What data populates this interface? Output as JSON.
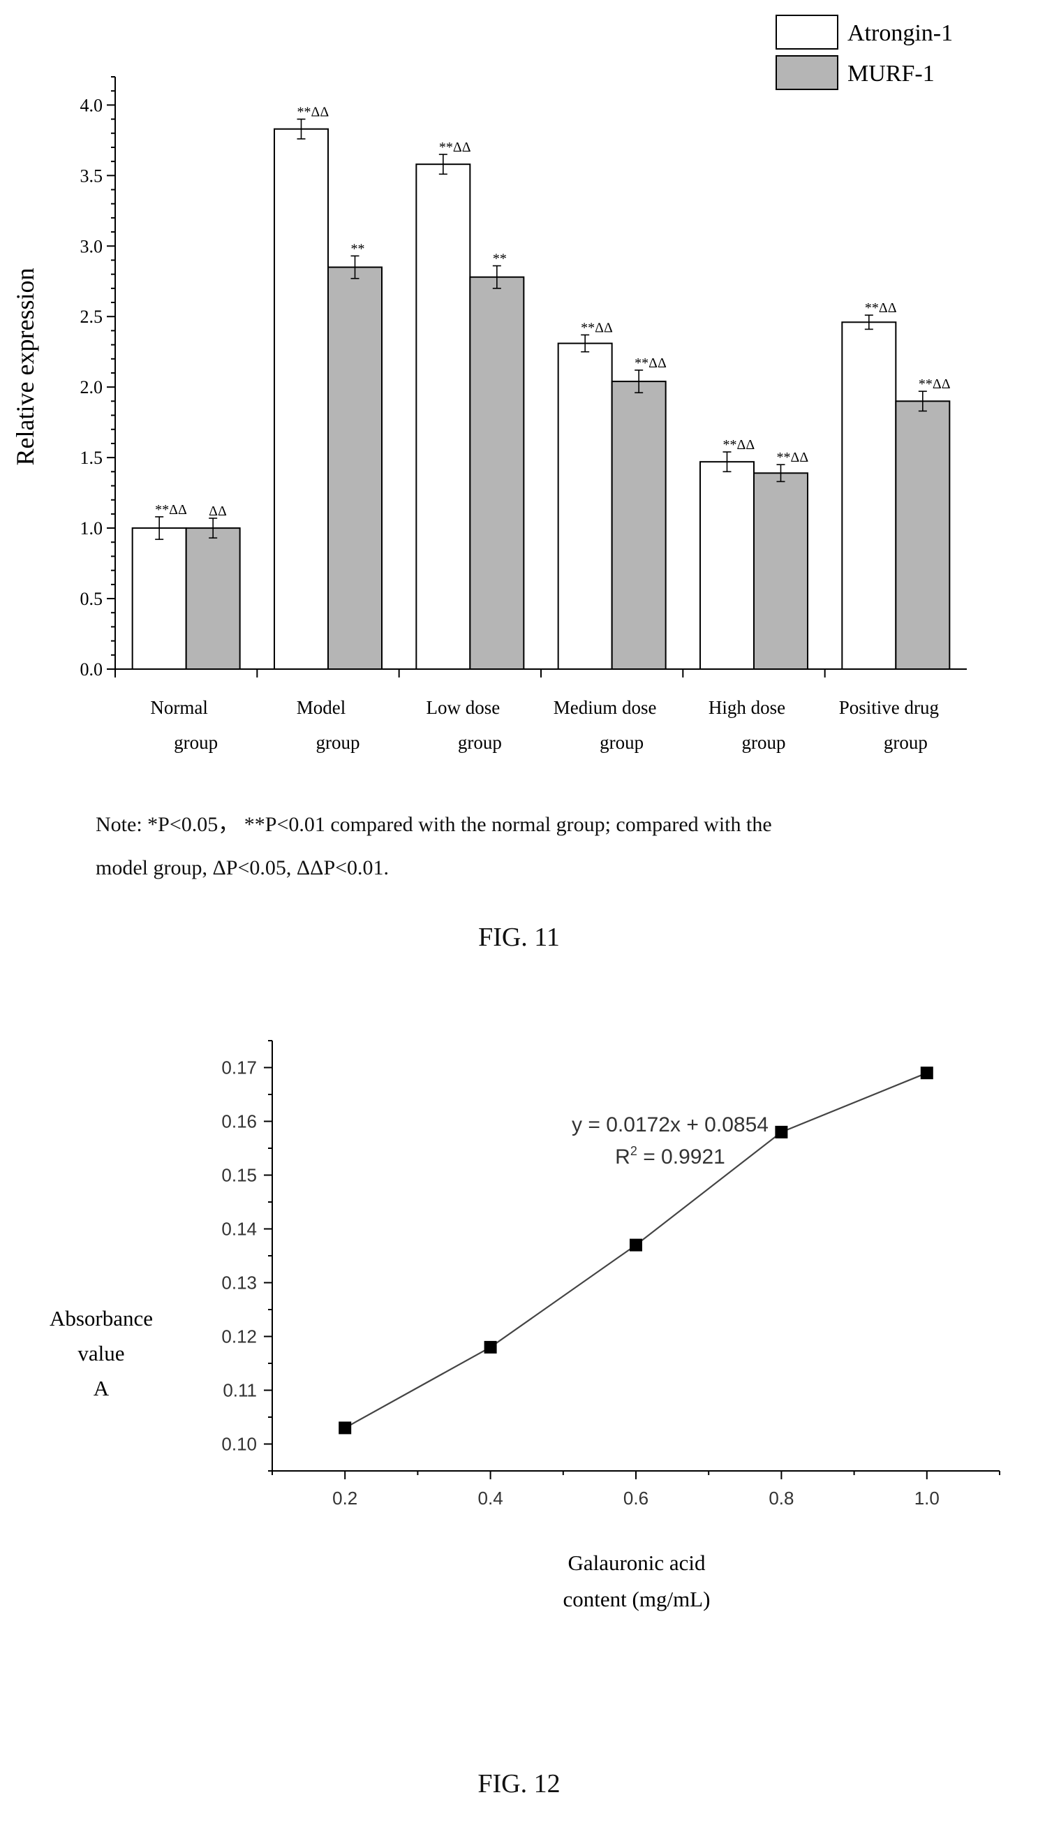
{
  "chart_data": [
    {
      "type": "bar",
      "title": "",
      "ylabel": "Relative expression",
      "xlabel": "",
      "ylim": [
        0,
        4.0
      ],
      "yticks": [
        "0.0",
        "0.5",
        "1.0",
        "1.5",
        "2.0",
        "2.5",
        "3.0",
        "3.5",
        "4.0"
      ],
      "categories": [
        [
          "Normal",
          "group"
        ],
        [
          "Model",
          "group"
        ],
        [
          "Low dose",
          "group"
        ],
        [
          "Medium dose",
          "group"
        ],
        [
          "High dose",
          "group"
        ],
        [
          "Positive drug",
          "group"
        ]
      ],
      "series": [
        {
          "name": "Atrongin-1",
          "color": "#ffffff",
          "values": [
            1.0,
            3.83,
            3.58,
            2.31,
            1.47,
            2.46
          ],
          "errors": [
            0.08,
            0.07,
            0.07,
            0.06,
            0.07,
            0.05
          ],
          "sig": [
            "**ΔΔ",
            "**ΔΔ",
            "**ΔΔ",
            "**ΔΔ",
            "**ΔΔ",
            "**ΔΔ"
          ]
        },
        {
          "name": "MURF-1",
          "color": "#b5b5b5",
          "values": [
            1.0,
            2.85,
            2.78,
            2.04,
            1.39,
            1.9
          ],
          "errors": [
            0.07,
            0.08,
            0.08,
            0.08,
            0.06,
            0.07
          ],
          "sig": [
            "ΔΔ",
            "**",
            "**",
            "**ΔΔ",
            "**ΔΔ",
            "**ΔΔ"
          ]
        }
      ],
      "legend": "top-right",
      "grid": false
    },
    {
      "type": "line",
      "title": "",
      "ylabel": [
        "Absorbance",
        "value",
        "A"
      ],
      "xlabel": [
        "Galauronic acid",
        "content (mg/mL)"
      ],
      "xlim": [
        0.1,
        1.1
      ],
      "ylim": [
        0.095,
        0.175
      ],
      "xticks": [
        "0.2",
        "0.4",
        "0.6",
        "0.8",
        "1.0"
      ],
      "yticks": [
        "0.10",
        "0.11",
        "0.12",
        "0.13",
        "0.14",
        "0.15",
        "0.16",
        "0.17"
      ],
      "x": [
        0.2,
        0.4,
        0.6,
        0.8,
        1.0
      ],
      "y": [
        0.103,
        0.118,
        0.137,
        0.158,
        0.169
      ],
      "equation": "y = 0.0172x + 0.0854",
      "r2_label": "R",
      "r2_sup": "2",
      "r2_value": " = 0.9921",
      "grid": false
    }
  ],
  "fig11_note_line1": "Note: *P<0.05， **P<0.01 compared with the normal group; compared with the",
  "fig11_note_line2": "model group, ΔP<0.05, ΔΔP<0.01.",
  "fig11_caption": "FIG. 11",
  "fig12_caption": "FIG. 12"
}
